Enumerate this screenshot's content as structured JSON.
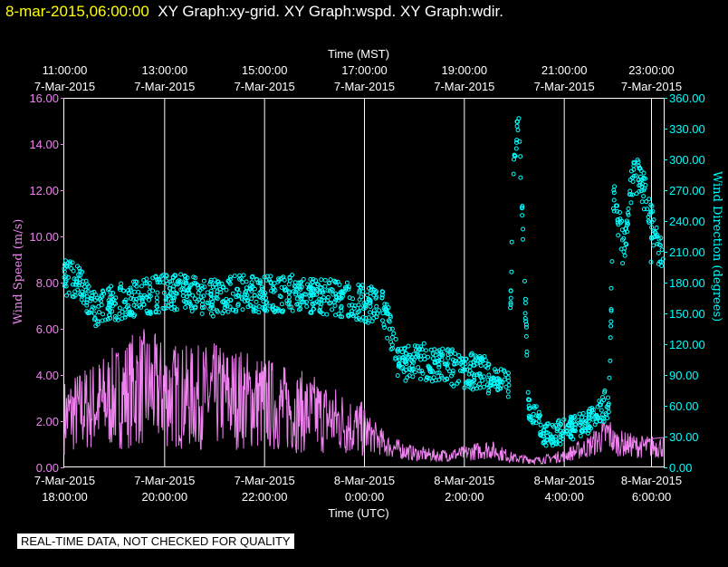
{
  "header": {
    "date_label": "8-mar-2015,06:00:00",
    "graphs_label": "XY Graph:xy-grid.  XY Graph:wspd.  XY Graph:wdir."
  },
  "footer": {
    "disclaimer": "REAL-TIME DATA, NOT CHECKED FOR QUALITY"
  },
  "colors": {
    "background": "#000000",
    "speed": "#ee82ee",
    "direction": "#00ffff",
    "grid": "#ffffff",
    "axis_text": "#ffffff",
    "title_date": "#ffff00"
  },
  "chart_data": {
    "type": "line",
    "grid": true,
    "x_top_title": "Time (MST)",
    "x_bottom_title": "Time (UTC)",
    "y_left_label": "Wind Speed (m/s)",
    "y_right_label": "Wind Direction (degrees)",
    "x_hours_utc_range": [
      18,
      30
    ],
    "y_left_lim": [
      0,
      16
    ],
    "y_right_lim": [
      0,
      360
    ],
    "top_ticks": [
      {
        "t": 18,
        "time": "11:00:00",
        "date": "7-Mar-2015"
      },
      {
        "t": 20,
        "time": "13:00:00",
        "date": "7-Mar-2015"
      },
      {
        "t": 22,
        "time": "15:00:00",
        "date": "7-Mar-2015"
      },
      {
        "t": 24,
        "time": "17:00:00",
        "date": "7-Mar-2015"
      },
      {
        "t": 26,
        "time": "19:00:00",
        "date": "7-Mar-2015"
      },
      {
        "t": 28,
        "time": "21:00:00",
        "date": "7-Mar-2015"
      },
      {
        "t": 30,
        "time": "23:00:00",
        "date": "7-Mar-2015"
      }
    ],
    "bottom_ticks": [
      {
        "t": 18,
        "date": "7-Mar-2015",
        "time": "18:00:00"
      },
      {
        "t": 20,
        "date": "7-Mar-2015",
        "time": "20:00:00"
      },
      {
        "t": 22,
        "date": "7-Mar-2015",
        "time": "22:00:00"
      },
      {
        "t": 24,
        "date": "8-Mar-2015",
        "time": "0:00:00"
      },
      {
        "t": 26,
        "date": "8-Mar-2015",
        "time": "2:00:00"
      },
      {
        "t": 28,
        "date": "8-Mar-2015",
        "time": "4:00:00"
      },
      {
        "t": 30,
        "date": "8-Mar-2015",
        "time": "6:00:00"
      }
    ],
    "left_ticks": [
      "0.00",
      "2.00",
      "4.00",
      "6.00",
      "8.00",
      "10.00",
      "12.00",
      "14.00",
      "16.00"
    ],
    "right_ticks": [
      "0.00",
      "30.00",
      "60.00",
      "90.00",
      "120.00",
      "150.00",
      "180.00",
      "210.00",
      "240.00",
      "270.00",
      "300.00",
      "330.00",
      "360.00"
    ],
    "series": [
      {
        "name": "Wind Speed",
        "axis": "left",
        "style": "line",
        "x": [
          18.0,
          18.5,
          19.0,
          19.5,
          20.0,
          20.5,
          21.0,
          21.5,
          22.0,
          22.5,
          23.0,
          23.5,
          24.0,
          24.5,
          25.0,
          25.5,
          26.0,
          26.5,
          27.0,
          27.5,
          28.0,
          28.5,
          28.9,
          29.0,
          29.5,
          30.0
        ],
        "y": [
          2.2,
          2.6,
          3.0,
          3.5,
          3.2,
          3.0,
          3.1,
          3.0,
          2.8,
          2.5,
          2.3,
          2.0,
          1.6,
          0.9,
          0.6,
          0.5,
          0.6,
          0.8,
          0.4,
          0.3,
          0.5,
          0.9,
          1.5,
          1.1,
          0.9,
          0.9
        ]
      },
      {
        "name": "Wind Direction",
        "axis": "right",
        "style": "points",
        "x": [
          18.0,
          18.3,
          18.6,
          19.0,
          19.5,
          20.0,
          20.5,
          21.0,
          21.5,
          22.0,
          22.5,
          23.0,
          23.5,
          24.0,
          24.4,
          24.7,
          25.0,
          25.5,
          26.0,
          26.5,
          26.9,
          27.0,
          27.1,
          27.3,
          27.5,
          27.6,
          28.0,
          28.5,
          28.9,
          29.0,
          29.2,
          29.4,
          29.6,
          29.8,
          30.0
        ],
        "y": [
          185,
          180,
          155,
          160,
          165,
          170,
          170,
          165,
          170,
          168,
          170,
          168,
          165,
          160,
          155,
          100,
          105,
          100,
          95,
          90,
          80,
          300,
          340,
          60,
          45,
          30,
          35,
          45,
          62,
          270,
          210,
          290,
          270,
          230,
          200
        ]
      }
    ]
  }
}
